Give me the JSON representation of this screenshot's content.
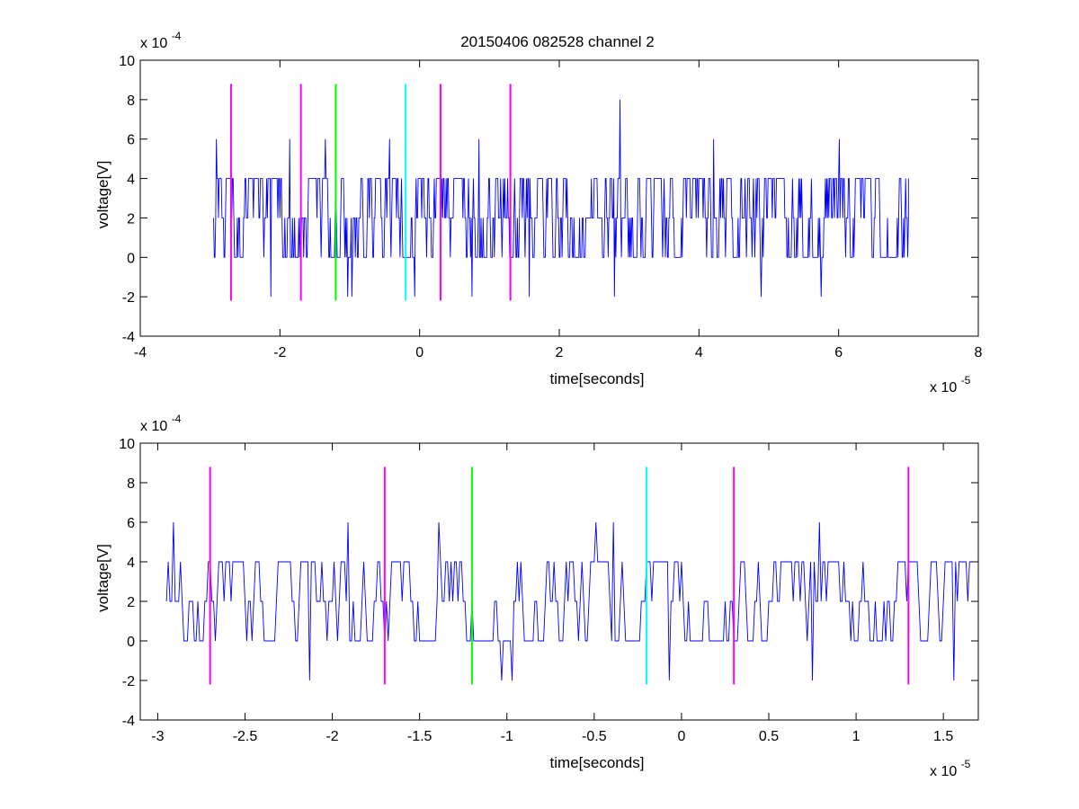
{
  "title": "20150406 082528 channel 2",
  "colors": {
    "trace": "#0000ff",
    "marker_magenta": "#ff00ff",
    "marker_green": "#00ff00",
    "marker_cyan": "#00ffff",
    "axis": "#000000",
    "background": "#ffffff"
  },
  "chart_data": [
    {
      "type": "line",
      "title": "20150406 082528 channel 2",
      "xlabel": "time[seconds]",
      "ylabel": "voltage[V]",
      "x_exponent_label": "x 10",
      "x_exponent": "-5",
      "y_exponent_label": "x 10",
      "y_exponent": "-4",
      "xlim": [
        -4,
        8
      ],
      "ylim": [
        -4,
        10
      ],
      "xticks": [
        "-4",
        "-2",
        "0",
        "2",
        "4",
        "6",
        "8"
      ],
      "yticks": [
        "-4",
        "-2",
        "0",
        "2",
        "4",
        "6",
        "8",
        "10"
      ],
      "grid": false,
      "trace": {
        "name": "signal",
        "x_range": [
          -2.95,
          7.0
        ],
        "baseline": [
          0,
          2,
          4
        ],
        "spikes": [
          {
            "x": -2.92,
            "y": 6
          },
          {
            "x": -2.14,
            "y": -2
          },
          {
            "x": -1.87,
            "y": 6
          },
          {
            "x": -1.36,
            "y": 6
          },
          {
            "x": -1.04,
            "y": -2
          },
          {
            "x": -0.98,
            "y": -2
          },
          {
            "x": -0.44,
            "y": 6
          },
          {
            "x": -0.08,
            "y": -2
          },
          {
            "x": 0.74,
            "y": -2
          },
          {
            "x": 0.84,
            "y": 6
          },
          {
            "x": 1.56,
            "y": -2
          },
          {
            "x": 2.78,
            "y": -2
          },
          {
            "x": 2.86,
            "y": 8
          },
          {
            "x": 4.2,
            "y": 6
          },
          {
            "x": 4.88,
            "y": -2
          },
          {
            "x": 5.74,
            "y": -2
          },
          {
            "x": 6.0,
            "y": 6
          }
        ]
      },
      "markers": [
        {
          "x": -2.7,
          "color": "magenta",
          "y_range": [
            -2.2,
            8.8
          ]
        },
        {
          "x": -1.7,
          "color": "magenta",
          "y_range": [
            -2.2,
            8.8
          ]
        },
        {
          "x": -1.2,
          "color": "green",
          "y_range": [
            -2.2,
            8.8
          ]
        },
        {
          "x": -0.2,
          "color": "cyan",
          "y_range": [
            -2.2,
            8.8
          ]
        },
        {
          "x": 0.3,
          "color": "magenta",
          "y_range": [
            -2.2,
            8.8
          ]
        },
        {
          "x": 1.3,
          "color": "magenta",
          "y_range": [
            -2.2,
            8.8
          ]
        }
      ]
    },
    {
      "type": "line",
      "title": "",
      "xlabel": "time[seconds]",
      "ylabel": "voltage[V]",
      "x_exponent_label": "x 10",
      "x_exponent": "-5",
      "y_exponent_label": "x 10",
      "y_exponent": "-4",
      "xlim": [
        -3.1,
        1.7
      ],
      "ylim": [
        -4,
        10
      ],
      "xticks": [
        "-3",
        "-2.5",
        "-2",
        "-1.5",
        "-1",
        "-0.5",
        "0",
        "0.5",
        "1",
        "1.5"
      ],
      "yticks": [
        "-4",
        "-2",
        "0",
        "2",
        "4",
        "6",
        "8",
        "10"
      ],
      "grid": false,
      "trace": {
        "name": "signal",
        "x_range": [
          -2.95,
          1.7
        ],
        "baseline": [
          0,
          2,
          4
        ],
        "spikes": [
          {
            "x": -2.92,
            "y": 6
          },
          {
            "x": -2.14,
            "y": -2
          },
          {
            "x": -1.92,
            "y": 6
          },
          {
            "x": -1.4,
            "y": 6
          },
          {
            "x": -1.04,
            "y": -2
          },
          {
            "x": -0.98,
            "y": -2
          },
          {
            "x": -0.5,
            "y": 6
          },
          {
            "x": -0.4,
            "y": 6
          },
          {
            "x": -0.08,
            "y": -2
          },
          {
            "x": 0.74,
            "y": -2
          },
          {
            "x": 0.78,
            "y": 6
          },
          {
            "x": 1.55,
            "y": -2
          }
        ]
      },
      "markers": [
        {
          "x": -2.7,
          "color": "magenta",
          "y_range": [
            -2.2,
            8.8
          ]
        },
        {
          "x": -1.7,
          "color": "magenta",
          "y_range": [
            -2.2,
            8.8
          ]
        },
        {
          "x": -1.2,
          "color": "green",
          "y_range": [
            -2.2,
            8.8
          ]
        },
        {
          "x": -0.2,
          "color": "cyan",
          "y_range": [
            -2.2,
            8.8
          ]
        },
        {
          "x": 0.3,
          "color": "magenta",
          "y_range": [
            -2.2,
            8.8
          ]
        },
        {
          "x": 1.3,
          "color": "magenta",
          "y_range": [
            -2.2,
            8.8
          ]
        }
      ]
    }
  ]
}
